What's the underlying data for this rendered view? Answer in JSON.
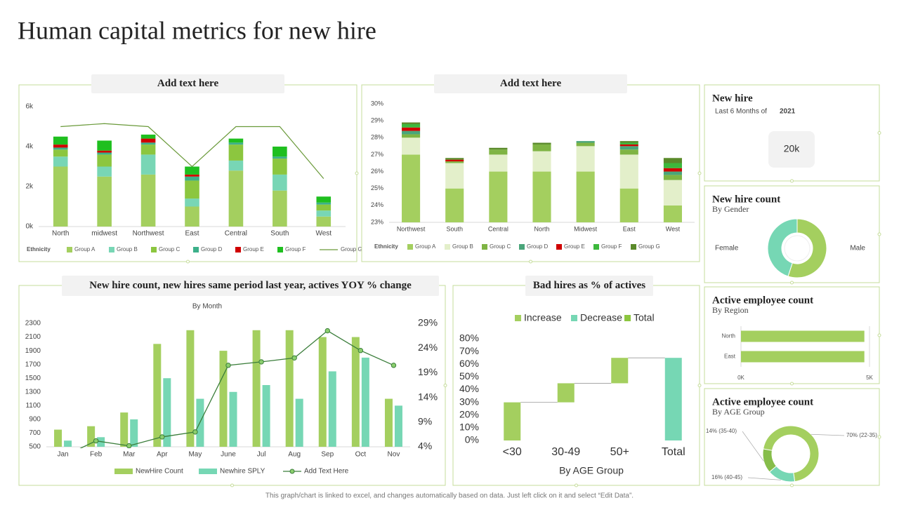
{
  "title": "Human capital metrics for new hire",
  "footer": "This graph/chart is linked to excel, and changes automatically based on data. Just left click on it and select “Edit Data”.",
  "chart_data": [
    {
      "type": "bar",
      "title": "Add text here",
      "categories": [
        "North",
        "midwest",
        "Northwest",
        "East",
        "Central",
        "South",
        "West"
      ],
      "ylim": [
        0,
        6000
      ],
      "yticks": [
        {
          "value": 0,
          "label": "0k"
        },
        {
          "value": 2000,
          "label": "2k"
        },
        {
          "value": 4000,
          "label": "4k"
        },
        {
          "value": 6000,
          "label": "6k"
        }
      ],
      "legend_title": "Ethnicity",
      "series": [
        {
          "name": "Group A",
          "color": "#a4cf5f",
          "values": [
            3000,
            2500,
            2600,
            1000,
            2800,
            1800,
            500
          ]
        },
        {
          "name": "Group B",
          "color": "#78d6b5",
          "values": [
            500,
            500,
            1000,
            400,
            500,
            800,
            300
          ]
        },
        {
          "name": "Group C",
          "color": "#8cc63f",
          "values": [
            350,
            600,
            500,
            900,
            800,
            800,
            300
          ]
        },
        {
          "name": "Group D",
          "color": "#3cb08a",
          "values": [
            100,
            100,
            100,
            200,
            100,
            100,
            100
          ]
        },
        {
          "name": "Group E",
          "color": "#d00000",
          "values": [
            150,
            100,
            200,
            100,
            0,
            0,
            0
          ]
        },
        {
          "name": "Group F",
          "color": "#1fbf1f",
          "values": [
            400,
            500,
            200,
            400,
            200,
            500,
            300
          ]
        },
        {
          "name": "Group G",
          "color": "#6a9a3a",
          "type": "line",
          "values": [
            5000,
            5150,
            5000,
            3000,
            5000,
            5000,
            2400
          ]
        }
      ]
    },
    {
      "type": "bar",
      "title": "Add text here",
      "categories": [
        "Northwest",
        "South",
        "Central",
        "North",
        "Midwest",
        "East",
        "West"
      ],
      "ylim": [
        23,
        30
      ],
      "yticks": [
        {
          "value": 23,
          "label": "23%"
        },
        {
          "value": 24,
          "label": "24%"
        },
        {
          "value": 25,
          "label": "25%"
        },
        {
          "value": 26,
          "label": "26%"
        },
        {
          "value": 27,
          "label": "27%"
        },
        {
          "value": 28,
          "label": "28%"
        },
        {
          "value": 29,
          "label": "29%"
        },
        {
          "value": 30,
          "label": "30%"
        }
      ],
      "legend_title": "Ethnicity",
      "series": [
        {
          "name": "Group A",
          "color": "#a4cf5f",
          "values": [
            27,
            25,
            26,
            26,
            26,
            25,
            24
          ]
        },
        {
          "name": "Group B",
          "color": "#e3efca",
          "values": [
            1,
            1.5,
            1,
            1.2,
            1.5,
            2,
            1.5
          ]
        },
        {
          "name": "Group C",
          "color": "#7fb444",
          "values": [
            0.2,
            0.1,
            0.3,
            0.4,
            0.2,
            0.3,
            0.3
          ]
        },
        {
          "name": "Group D",
          "color": "#4aa57a",
          "values": [
            0.2,
            0,
            0,
            0,
            0.1,
            0.2,
            0.2
          ]
        },
        {
          "name": "Group E",
          "color": "#d00000",
          "values": [
            0.2,
            0.1,
            0,
            0,
            0,
            0.1,
            0.2
          ]
        },
        {
          "name": "Group F",
          "color": "#3cb83c",
          "values": [
            0.2,
            0,
            0,
            0,
            0,
            0.1,
            0.3
          ]
        },
        {
          "name": "Group G",
          "color": "#5a8a2a",
          "values": [
            0.1,
            0.1,
            0.1,
            0.1,
            0,
            0.1,
            0.3
          ]
        }
      ]
    },
    {
      "type": "combo",
      "title": "New hire count, new hires same period last year, actives YOY % change",
      "subtitle": "By Month",
      "categories": [
        "Jan",
        "Feb",
        "Mar",
        "Apr",
        "May",
        "June",
        "Jul",
        "Aug",
        "Sep",
        "Oct",
        "Nov"
      ],
      "ylim": [
        500,
        2300
      ],
      "yticks": [
        500,
        700,
        900,
        1100,
        1300,
        1500,
        1700,
        1900,
        2100,
        2300
      ],
      "y2lim": [
        4,
        29
      ],
      "y2ticks": [
        {
          "value": 4,
          "label": "4%"
        },
        {
          "value": 9,
          "label": "9%"
        },
        {
          "value": 14,
          "label": "14%"
        },
        {
          "value": 19,
          "label": "19%"
        },
        {
          "value": 24,
          "label": "24%"
        },
        {
          "value": 29,
          "label": "29%"
        }
      ],
      "series": [
        {
          "name": "NewHire Count",
          "color": "#a4cf5f",
          "values": [
            750,
            800,
            1000,
            2000,
            2200,
            1900,
            2200,
            2200,
            2100,
            2100,
            1200
          ]
        },
        {
          "name": "Newhire SPLY",
          "color": "#76d7b4",
          "values": [
            590,
            640,
            900,
            1500,
            1200,
            1300,
            1400,
            1200,
            1600,
            1800,
            1100
          ]
        },
        {
          "name": "Add Text Here",
          "color": "#3a7d3a",
          "type": "line",
          "axis": "y2",
          "values": [
            2,
            5.2,
            4.2,
            6,
            7,
            20.5,
            21.2,
            22,
            27.5,
            23.5,
            20.5
          ]
        }
      ]
    },
    {
      "type": "waterfall",
      "title": "Bad hires as % of actives",
      "xlabel": "By AGE Group",
      "categories": [
        "<30",
        "30-49",
        "50+",
        "Total"
      ],
      "values": [
        30,
        15,
        20,
        65
      ],
      "measure": [
        "increase",
        "increase",
        "increase",
        "total"
      ],
      "total_color": "#76d7b4",
      "ylim": [
        0,
        80
      ],
      "yticks": [
        {
          "value": 0,
          "label": "0%"
        },
        {
          "value": 10,
          "label": "10%"
        },
        {
          "value": 20,
          "label": "20%"
        },
        {
          "value": 30,
          "label": "30%"
        },
        {
          "value": 40,
          "label": "40%"
        },
        {
          "value": 50,
          "label": "50%"
        },
        {
          "value": 60,
          "label": "60%"
        },
        {
          "value": 70,
          "label": "70%"
        },
        {
          "value": 80,
          "label": "80%"
        }
      ],
      "series": [
        {
          "name": "Increase",
          "color": "#a4cf5f"
        },
        {
          "name": "Decrease",
          "color": "#76d7b4"
        },
        {
          "name": "Total",
          "color": "#8cc63f"
        }
      ]
    },
    {
      "type": "kpi",
      "title": "New hire",
      "subtitle": "Last 6 Months of",
      "highlight": "2021",
      "value": 20000,
      "value_label": "20k"
    },
    {
      "type": "pie",
      "title": "New hire count",
      "subtitle": "By Gender",
      "hole": true,
      "categories": [
        "Male",
        "Female"
      ],
      "values": [
        55,
        45
      ],
      "colors": [
        "#a4cf5f",
        "#76d7b4"
      ]
    },
    {
      "type": "bar",
      "orientation": "horizontal",
      "title": "Active employee count",
      "subtitle": "By Region",
      "categories": [
        "North",
        "East"
      ],
      "values": [
        4800,
        4800
      ],
      "color": "#a4cf5f",
      "xlim": [
        0,
        5000
      ],
      "xticks": [
        {
          "value": 0,
          "label": "0K"
        },
        {
          "value": 5000,
          "label": "5K"
        }
      ]
    },
    {
      "type": "pie",
      "title": "Active employee count",
      "subtitle": "By AGE Group",
      "hole": true,
      "values": [
        70,
        16,
        14
      ],
      "value_labels": [
        "70% (22-35)",
        "16% (40-45)",
        "14% (35-40)"
      ],
      "colors": [
        "#a4cf5f",
        "#76d7b4",
        "#86bd4a"
      ]
    }
  ]
}
